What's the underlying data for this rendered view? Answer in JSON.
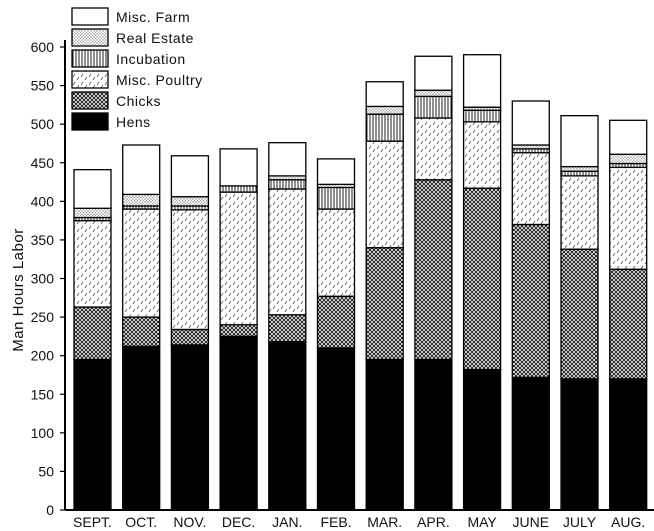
{
  "chart_data": {
    "type": "bar",
    "stacked": true,
    "ylabel": "Man Hours Labor",
    "ylim": [
      0,
      600
    ],
    "yticks": [
      0,
      50,
      100,
      150,
      200,
      250,
      300,
      350,
      400,
      450,
      500,
      550,
      600
    ],
    "categories": [
      "SEPT.",
      "OCT.",
      "NOV.",
      "DEC.",
      "JAN.",
      "FEB.",
      "MAR.",
      "APR.",
      "MAY",
      "JUNE",
      "JULY",
      "AUG."
    ],
    "legend_position": "top-left",
    "series": [
      {
        "name": "Hens",
        "pattern": "solid-black",
        "values": [
          195,
          212,
          214,
          225,
          218,
          210,
          195,
          195,
          182,
          172,
          170,
          170
        ]
      },
      {
        "name": "Chicks",
        "pattern": "crosshatch",
        "values": [
          68,
          38,
          20,
          15,
          35,
          67,
          145,
          233,
          235,
          198,
          168,
          142
        ]
      },
      {
        "name": "Misc. Poultry",
        "pattern": "dashed-stipple",
        "values": [
          112,
          140,
          155,
          172,
          163,
          113,
          138,
          80,
          86,
          93,
          95,
          132
        ]
      },
      {
        "name": "Incubation",
        "pattern": "vertical-lines",
        "values": [
          4,
          4,
          5,
          8,
          12,
          28,
          35,
          28,
          15,
          5,
          6,
          5
        ]
      },
      {
        "name": "Real Estate",
        "pattern": "fine-dots",
        "values": [
          12,
          15,
          12,
          0,
          5,
          4,
          10,
          8,
          4,
          5,
          6,
          12
        ]
      },
      {
        "name": "Misc. Farm",
        "pattern": "white",
        "values": [
          50,
          64,
          53,
          48,
          43,
          33,
          32,
          44,
          68,
          57,
          66,
          44
        ]
      }
    ]
  }
}
